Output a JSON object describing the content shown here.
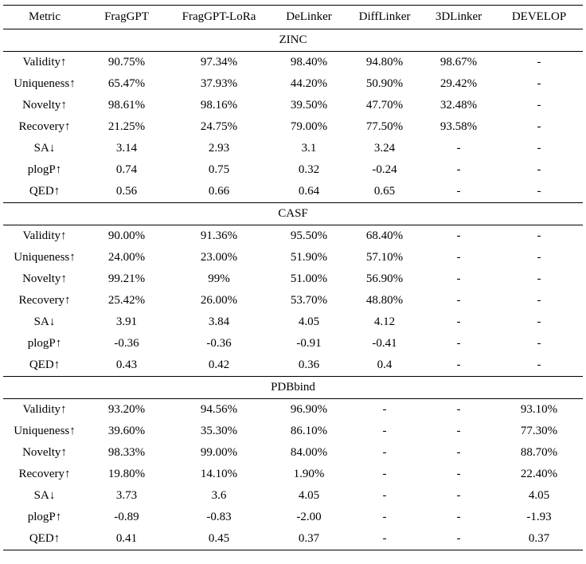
{
  "header": [
    "Metric",
    "FragGPT",
    "FragGPT-LoRa",
    "DeLinker",
    "DiffLinker",
    "3DLinker",
    "DEVELOP"
  ],
  "sections": [
    {
      "name": "ZINC",
      "rows": [
        [
          "Validity↑",
          "90.75%",
          "97.34%",
          "98.40%",
          "94.80%",
          "98.67%",
          "-"
        ],
        [
          "Uniqueness↑",
          "65.47%",
          "37.93%",
          "44.20%",
          "50.90%",
          "29.42%",
          "-"
        ],
        [
          "Novelty↑",
          "98.61%",
          "98.16%",
          "39.50%",
          "47.70%",
          "32.48%",
          "-"
        ],
        [
          "Recovery↑",
          "21.25%",
          "24.75%",
          "79.00%",
          "77.50%",
          "93.58%",
          "-"
        ],
        [
          "SA↓",
          "3.14",
          "2.93",
          "3.1",
          "3.24",
          "-",
          "-"
        ],
        [
          "plogP↑",
          "0.74",
          "0.75",
          "0.32",
          "-0.24",
          "-",
          "-"
        ],
        [
          "QED↑",
          "0.56",
          "0.66",
          "0.64",
          "0.65",
          "-",
          "-"
        ]
      ]
    },
    {
      "name": "CASF",
      "rows": [
        [
          "Validity↑",
          "90.00%",
          "91.36%",
          "95.50%",
          "68.40%",
          "-",
          "-"
        ],
        [
          "Uniqueness↑",
          "24.00%",
          "23.00%",
          "51.90%",
          "57.10%",
          "-",
          "-"
        ],
        [
          "Novelty↑",
          "99.21%",
          "99%",
          "51.00%",
          "56.90%",
          "-",
          "-"
        ],
        [
          "Recovery↑",
          "25.42%",
          "26.00%",
          "53.70%",
          "48.80%",
          "-",
          "-"
        ],
        [
          "SA↓",
          "3.91",
          "3.84",
          "4.05",
          "4.12",
          "-",
          "-"
        ],
        [
          "plogP↑",
          "-0.36",
          "-0.36",
          "-0.91",
          "-0.41",
          "-",
          "-"
        ],
        [
          "QED↑",
          "0.43",
          "0.42",
          "0.36",
          "0.4",
          "-",
          "-"
        ]
      ]
    },
    {
      "name": "PDBbind",
      "rows": [
        [
          "Validity↑",
          "93.20%",
          "94.56%",
          "96.90%",
          "-",
          "-",
          "93.10%"
        ],
        [
          "Uniqueness↑",
          "39.60%",
          "35.30%",
          "86.10%",
          "-",
          "-",
          "77.30%"
        ],
        [
          "Novelty↑",
          "98.33%",
          "99.00%",
          "84.00%",
          "-",
          "-",
          "88.70%"
        ],
        [
          "Recovery↑",
          "19.80%",
          "14.10%",
          "1.90%",
          "-",
          "-",
          "22.40%"
        ],
        [
          "SA↓",
          "3.73",
          "3.6",
          "4.05",
          "-",
          "-",
          "4.05"
        ],
        [
          "plogP↑",
          "-0.89",
          "-0.83",
          "-2.00",
          "-",
          "-",
          "-1.93"
        ],
        [
          "QED↑",
          "0.41",
          "0.45",
          "0.37",
          "-",
          "-",
          "0.37"
        ]
      ]
    }
  ]
}
